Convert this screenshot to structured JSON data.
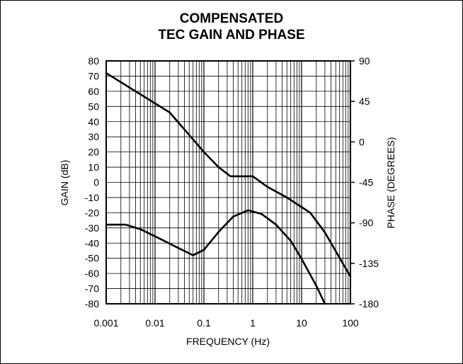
{
  "chart_data": {
    "type": "line",
    "title_lines": [
      "COMPENSATED",
      "TEC GAIN AND PHASE"
    ],
    "xlabel": "FREQUENCY (Hz)",
    "ylabel": "GAIN (dB)",
    "y2label": "PHASE (DEGREES)",
    "x_scale": "log",
    "xlim": [
      0.001,
      100
    ],
    "ylim": [
      -80,
      80
    ],
    "y2lim": [
      -180,
      90
    ],
    "x_ticks": [
      "0.001",
      "0.01",
      "0.1",
      "1",
      "10",
      "100"
    ],
    "y_ticks": [
      "80",
      "70",
      "60",
      "50",
      "40",
      "30",
      "20",
      "10",
      "0",
      "-10",
      "-20",
      "-30",
      "-40",
      "-50",
      "-60",
      "-70",
      "-80"
    ],
    "y2_ticks": [
      "90",
      "45",
      "0",
      "-45",
      "-90",
      "-135",
      "-180"
    ],
    "grid": true,
    "series": [
      {
        "axis": "left",
        "x": [
          0.001,
          0.02,
          0.1,
          0.2,
          0.35,
          1.0,
          2.0,
          5.0,
          15.0,
          30.0,
          100.0
        ],
        "y": [
          72,
          46,
          20,
          10,
          4,
          4,
          -3,
          -10,
          -20,
          -33,
          -62
        ]
      },
      {
        "axis": "right",
        "x": [
          0.001,
          0.0025,
          0.005,
          0.01,
          0.03,
          0.06,
          0.1,
          0.2,
          0.4,
          0.8,
          1.5,
          3.0,
          6.0,
          10.0,
          20.0,
          30.0
        ],
        "y": [
          -92,
          -92,
          -97,
          -105,
          -118,
          -126,
          -120,
          -100,
          -83,
          -76,
          -80,
          -92,
          -110,
          -130,
          -160,
          -180
        ]
      }
    ]
  }
}
